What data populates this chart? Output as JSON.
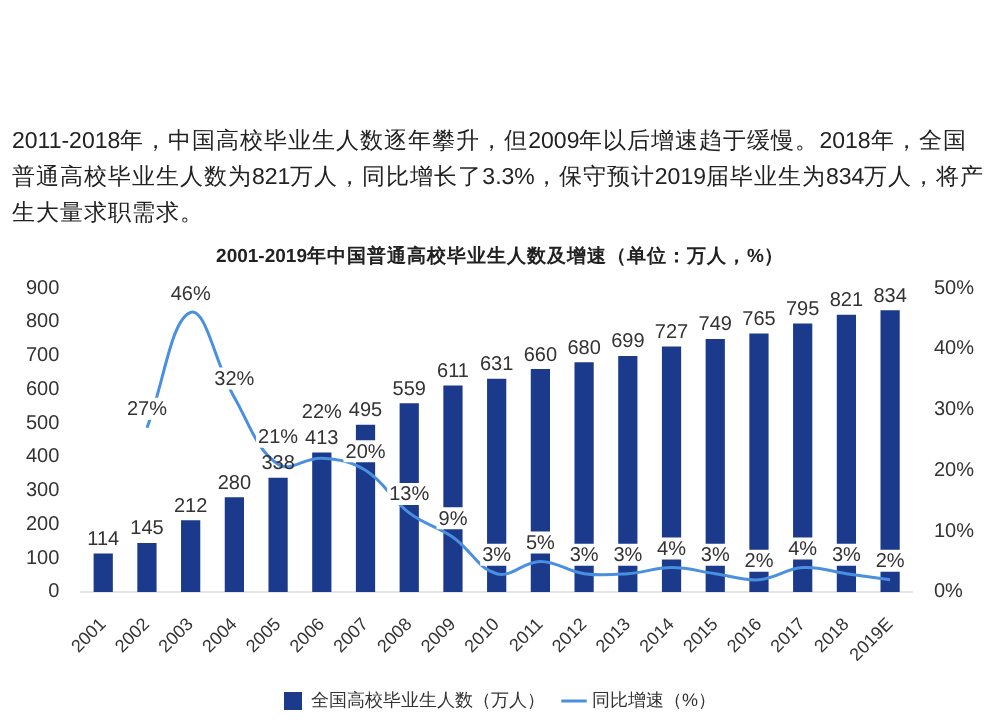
{
  "chart_data": {
    "type": "bar",
    "subtitle": "2011-2018年，中国高校毕业生人数逐年攀升，但2009年以后增速趋于缓慢。2018年，全国普通高校毕业生人数为821万人，同比增长了3.3%，保守预计2019届毕业生为834万人，将产生大量求职需求。",
    "title": "2001-2019年中国普通高校毕业生人数及增速（单位：万人，%）",
    "categories": [
      "2001",
      "2002",
      "2003",
      "2004",
      "2005",
      "2006",
      "2007",
      "2008",
      "2009",
      "2010",
      "2011",
      "2012",
      "2013",
      "2014",
      "2015",
      "2016",
      "2017",
      "2018",
      "2019E"
    ],
    "series": [
      {
        "name": "全国高校毕业生人数（万人）",
        "color": "#1b3a8c",
        "values": [
          114,
          145,
          212,
          280,
          338,
          413,
          495,
          559,
          611,
          631,
          660,
          680,
          699,
          727,
          749,
          765,
          795,
          821,
          834
        ],
        "value_labels": [
          "114",
          "145",
          "212",
          "280",
          "338",
          "413",
          "495",
          "559",
          "611",
          "631",
          "660",
          "680",
          "699",
          "727",
          "749",
          "765",
          "795",
          "821",
          "834"
        ]
      },
      {
        "name": "同比增速（%）",
        "type": "line",
        "axis": "y2",
        "color": "#4a8fe0",
        "values": [
          null,
          27,
          46,
          32,
          21,
          22,
          20,
          13,
          9,
          3,
          5,
          3,
          3,
          4,
          3,
          2,
          4,
          3,
          2
        ],
        "value_labels": [
          null,
          "27%",
          "46%",
          "32%",
          "21%",
          "22%",
          "20%",
          "13%",
          "9%",
          "3%",
          "5%",
          "3%",
          "3%",
          "4%",
          "3%",
          "2%",
          "4%",
          "3%",
          "2%"
        ]
      }
    ],
    "ylim": [
      0,
      900
    ],
    "yticks": [
      0,
      100,
      200,
      300,
      400,
      500,
      600,
      700,
      800,
      900
    ],
    "y2lim": [
      0,
      50
    ],
    "y2ticks": [
      {
        "value": 0,
        "label": "0%"
      },
      {
        "value": 10,
        "label": "10%"
      },
      {
        "value": 20,
        "label": "20%"
      },
      {
        "value": 30,
        "label": "30%"
      },
      {
        "value": 40,
        "label": "40%"
      },
      {
        "value": 50,
        "label": "50%"
      }
    ],
    "grid": false,
    "legend": "bottom"
  }
}
